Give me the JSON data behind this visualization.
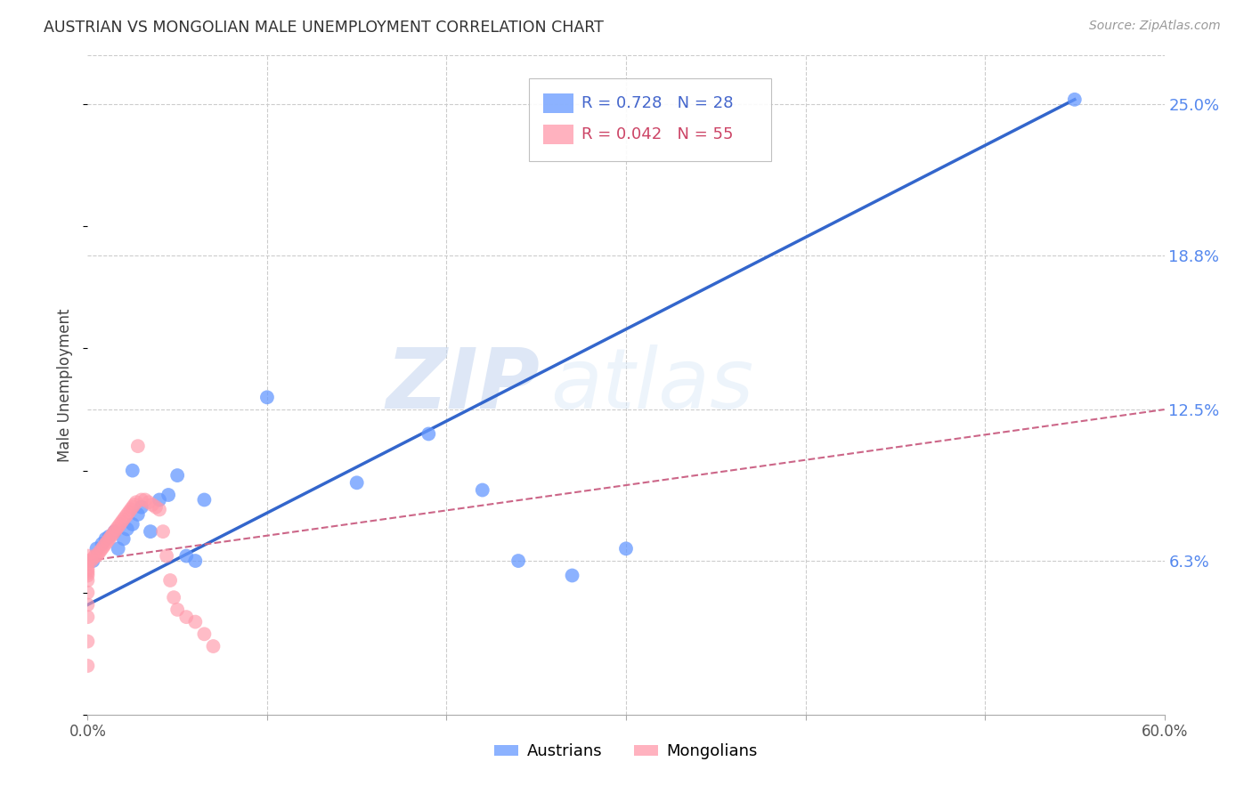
{
  "title": "AUSTRIAN VS MONGOLIAN MALE UNEMPLOYMENT CORRELATION CHART",
  "source": "Source: ZipAtlas.com",
  "ylabel": "Male Unemployment",
  "xlim": [
    0.0,
    0.6
  ],
  "ylim": [
    0.0,
    0.27
  ],
  "ytick_labels_right": [
    "25.0%",
    "18.8%",
    "12.5%",
    "6.3%"
  ],
  "ytick_vals_right": [
    0.25,
    0.188,
    0.125,
    0.063
  ],
  "legend_R1": "R = 0.728",
  "legend_N1": "N = 28",
  "legend_R2": "R = 0.042",
  "legend_N2": "N = 55",
  "austrians_color": "#6699ff",
  "mongolians_color": "#ff99aa",
  "trend_austrians_color": "#3366cc",
  "trend_mongolians_color": "#cc6688",
  "background_color": "#ffffff",
  "grid_color": "#cccccc",
  "watermark_zip": "ZIP",
  "watermark_atlas": "atlas",
  "austrians_x": [
    0.003,
    0.005,
    0.008,
    0.01,
    0.012,
    0.015,
    0.017,
    0.02,
    0.022,
    0.025,
    0.025,
    0.028,
    0.03,
    0.035,
    0.04,
    0.045,
    0.05,
    0.055,
    0.06,
    0.065,
    0.1,
    0.15,
    0.19,
    0.22,
    0.24,
    0.27,
    0.3,
    0.55
  ],
  "austrians_y": [
    0.063,
    0.068,
    0.07,
    0.072,
    0.073,
    0.075,
    0.068,
    0.072,
    0.076,
    0.078,
    0.1,
    0.082,
    0.085,
    0.075,
    0.088,
    0.09,
    0.098,
    0.065,
    0.063,
    0.088,
    0.13,
    0.095,
    0.115,
    0.092,
    0.063,
    0.057,
    0.068,
    0.252
  ],
  "mongolians_x": [
    0.0,
    0.0,
    0.0,
    0.0,
    0.0,
    0.0,
    0.0,
    0.0,
    0.0,
    0.0,
    0.0,
    0.0,
    0.0,
    0.002,
    0.003,
    0.004,
    0.005,
    0.006,
    0.007,
    0.008,
    0.009,
    0.01,
    0.011,
    0.012,
    0.013,
    0.014,
    0.015,
    0.016,
    0.017,
    0.018,
    0.019,
    0.02,
    0.021,
    0.022,
    0.023,
    0.024,
    0.025,
    0.026,
    0.027,
    0.028,
    0.03,
    0.032,
    0.034,
    0.036,
    0.038,
    0.04,
    0.042,
    0.044,
    0.046,
    0.048,
    0.05,
    0.055,
    0.06,
    0.065,
    0.07
  ],
  "mongolians_y": [
    0.02,
    0.03,
    0.04,
    0.045,
    0.05,
    0.055,
    0.057,
    0.058,
    0.059,
    0.06,
    0.062,
    0.063,
    0.065,
    0.063,
    0.064,
    0.065,
    0.065,
    0.066,
    0.067,
    0.068,
    0.069,
    0.07,
    0.071,
    0.072,
    0.073,
    0.074,
    0.075,
    0.076,
    0.077,
    0.078,
    0.079,
    0.08,
    0.081,
    0.082,
    0.083,
    0.084,
    0.085,
    0.086,
    0.087,
    0.11,
    0.088,
    0.088,
    0.087,
    0.086,
    0.085,
    0.084,
    0.075,
    0.065,
    0.055,
    0.048,
    0.043,
    0.04,
    0.038,
    0.033,
    0.028
  ],
  "austrians_trend_x": [
    0.0,
    0.55
  ],
  "austrians_trend_y": [
    0.045,
    0.252
  ],
  "mongolians_trend_x": [
    0.0,
    0.6
  ],
  "mongolians_trend_y": [
    0.063,
    0.125
  ]
}
